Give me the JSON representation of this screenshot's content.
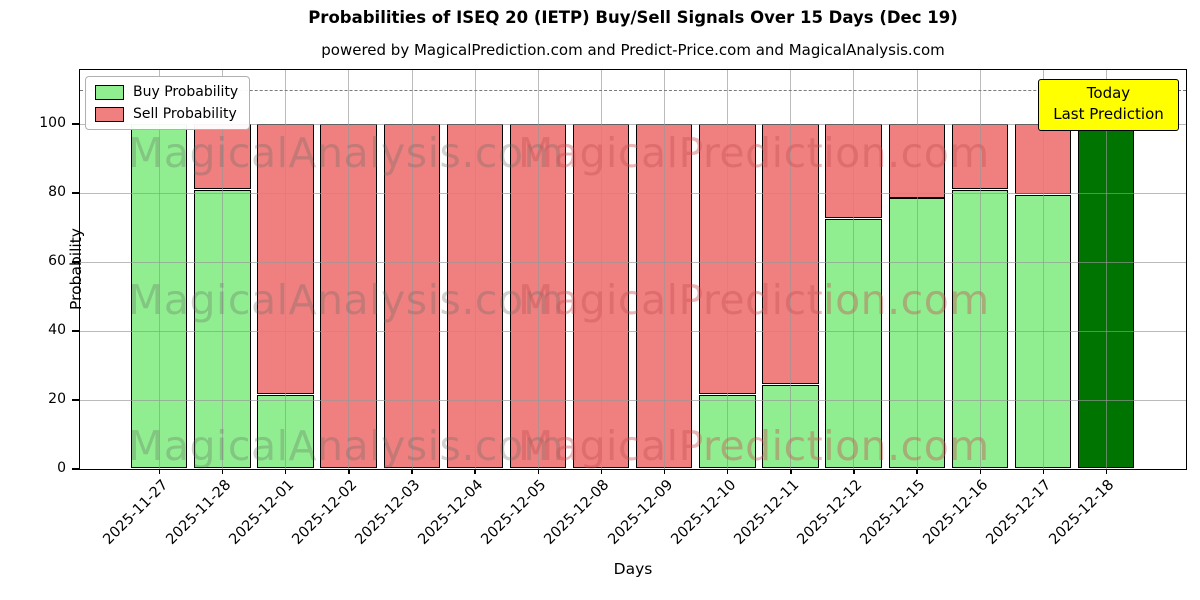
{
  "page": {
    "title": "Probabilities of ISEQ 20 (IETP) Buy/Sell Signals Over 15 Days (Dec 19)",
    "subtitle": "powered by MagicalPrediction.com and Predict-Price.com and MagicalAnalysis.com"
  },
  "axes": {
    "x_label": "Days",
    "y_label": "Probability"
  },
  "legend": {
    "items": [
      {
        "label": "Buy Probability",
        "color": "#90EE90"
      },
      {
        "label": "Sell Probability",
        "color": "#F08080"
      }
    ]
  },
  "annotation_box": {
    "line1": "Today",
    "line2": "Last Prediction",
    "bg_color": "#ffff00"
  },
  "watermarks": {
    "left": "MagicalAnalysis.com",
    "right": "MagicalPrediction.com"
  },
  "colors": {
    "buy": "#90EE90",
    "sell": "#F08080",
    "today_bar": "#007400",
    "grid": "#b0b0b0",
    "dashed_guide": "#7a7a7a",
    "annotation_bg": "#ffff00",
    "bar_edge": "#000000"
  },
  "chart_data": {
    "type": "bar",
    "stacked": true,
    "title": "Probabilities of ISEQ 20 (IETP) Buy/Sell Signals Over 15 Days (Dec 19)",
    "xlabel": "Days",
    "ylabel": "Probability",
    "ylim": [
      0,
      115.7
    ],
    "yticks": [
      0,
      20,
      40,
      60,
      80,
      100
    ],
    "dashed_guide_y": 110,
    "grid": true,
    "legend_position": "upper left",
    "categories": [
      "2025-11-27",
      "2025-11-28",
      "2025-12-01",
      "2025-12-02",
      "2025-12-03",
      "2025-12-04",
      "2025-12-05",
      "2025-12-08",
      "2025-12-09",
      "2025-12-10",
      "2025-12-11",
      "2025-12-12",
      "2025-12-15",
      "2025-12-16",
      "2025-12-17",
      "2025-12-18"
    ],
    "series": [
      {
        "name": "Buy Probability",
        "color": "#90EE90",
        "values": [
          100,
          81,
          21.5,
          0,
          0,
          0,
          0,
          0,
          0,
          21.5,
          24.5,
          72.5,
          78.5,
          81,
          79.5,
          100
        ]
      },
      {
        "name": "Sell Probability",
        "color": "#F08080",
        "values": [
          0,
          19,
          78.5,
          100,
          100,
          100,
          100,
          100,
          100,
          78.5,
          75.5,
          27.5,
          21.5,
          19,
          20.5,
          0
        ]
      }
    ],
    "today_bar": {
      "category": "2025-12-18",
      "color": "#007400",
      "label": "Today Last Prediction"
    }
  }
}
